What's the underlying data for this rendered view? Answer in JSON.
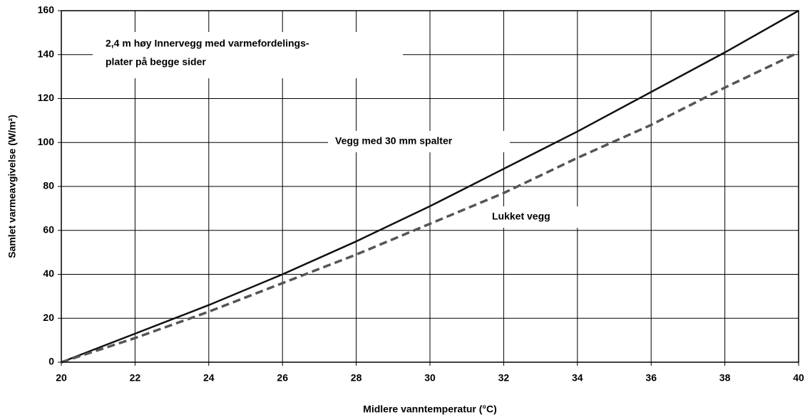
{
  "chart_data": {
    "type": "line",
    "x": [
      20,
      22,
      24,
      26,
      28,
      30,
      32,
      34,
      36,
      38,
      40
    ],
    "series": [
      {
        "name": "Vegg med 30 mm spalter",
        "color": "#111111",
        "dash": false,
        "values": [
          0,
          13,
          26,
          40,
          55,
          71,
          88,
          105,
          123,
          141,
          160
        ]
      },
      {
        "name": "Lukket vegg",
        "color": "#555555",
        "dash": true,
        "values": [
          0,
          11,
          23,
          36,
          49,
          63,
          77,
          93,
          108,
          125,
          141
        ]
      }
    ],
    "annotations": [
      "2,4 m høy Innervegg med varmefordelings-",
      "plater på begge sider"
    ],
    "xlabel": "Midlere vanntemperatur (°C)",
    "ylabel": "Samlet varmeavgivelse (W/m²)",
    "xlim": [
      20,
      40
    ],
    "xticks": [
      20,
      22,
      24,
      26,
      28,
      30,
      32,
      34,
      36,
      38,
      40
    ],
    "ylim": [
      0,
      160
    ],
    "yticks": [
      0,
      20,
      40,
      60,
      80,
      100,
      120,
      140,
      160
    ],
    "grid": true
  }
}
